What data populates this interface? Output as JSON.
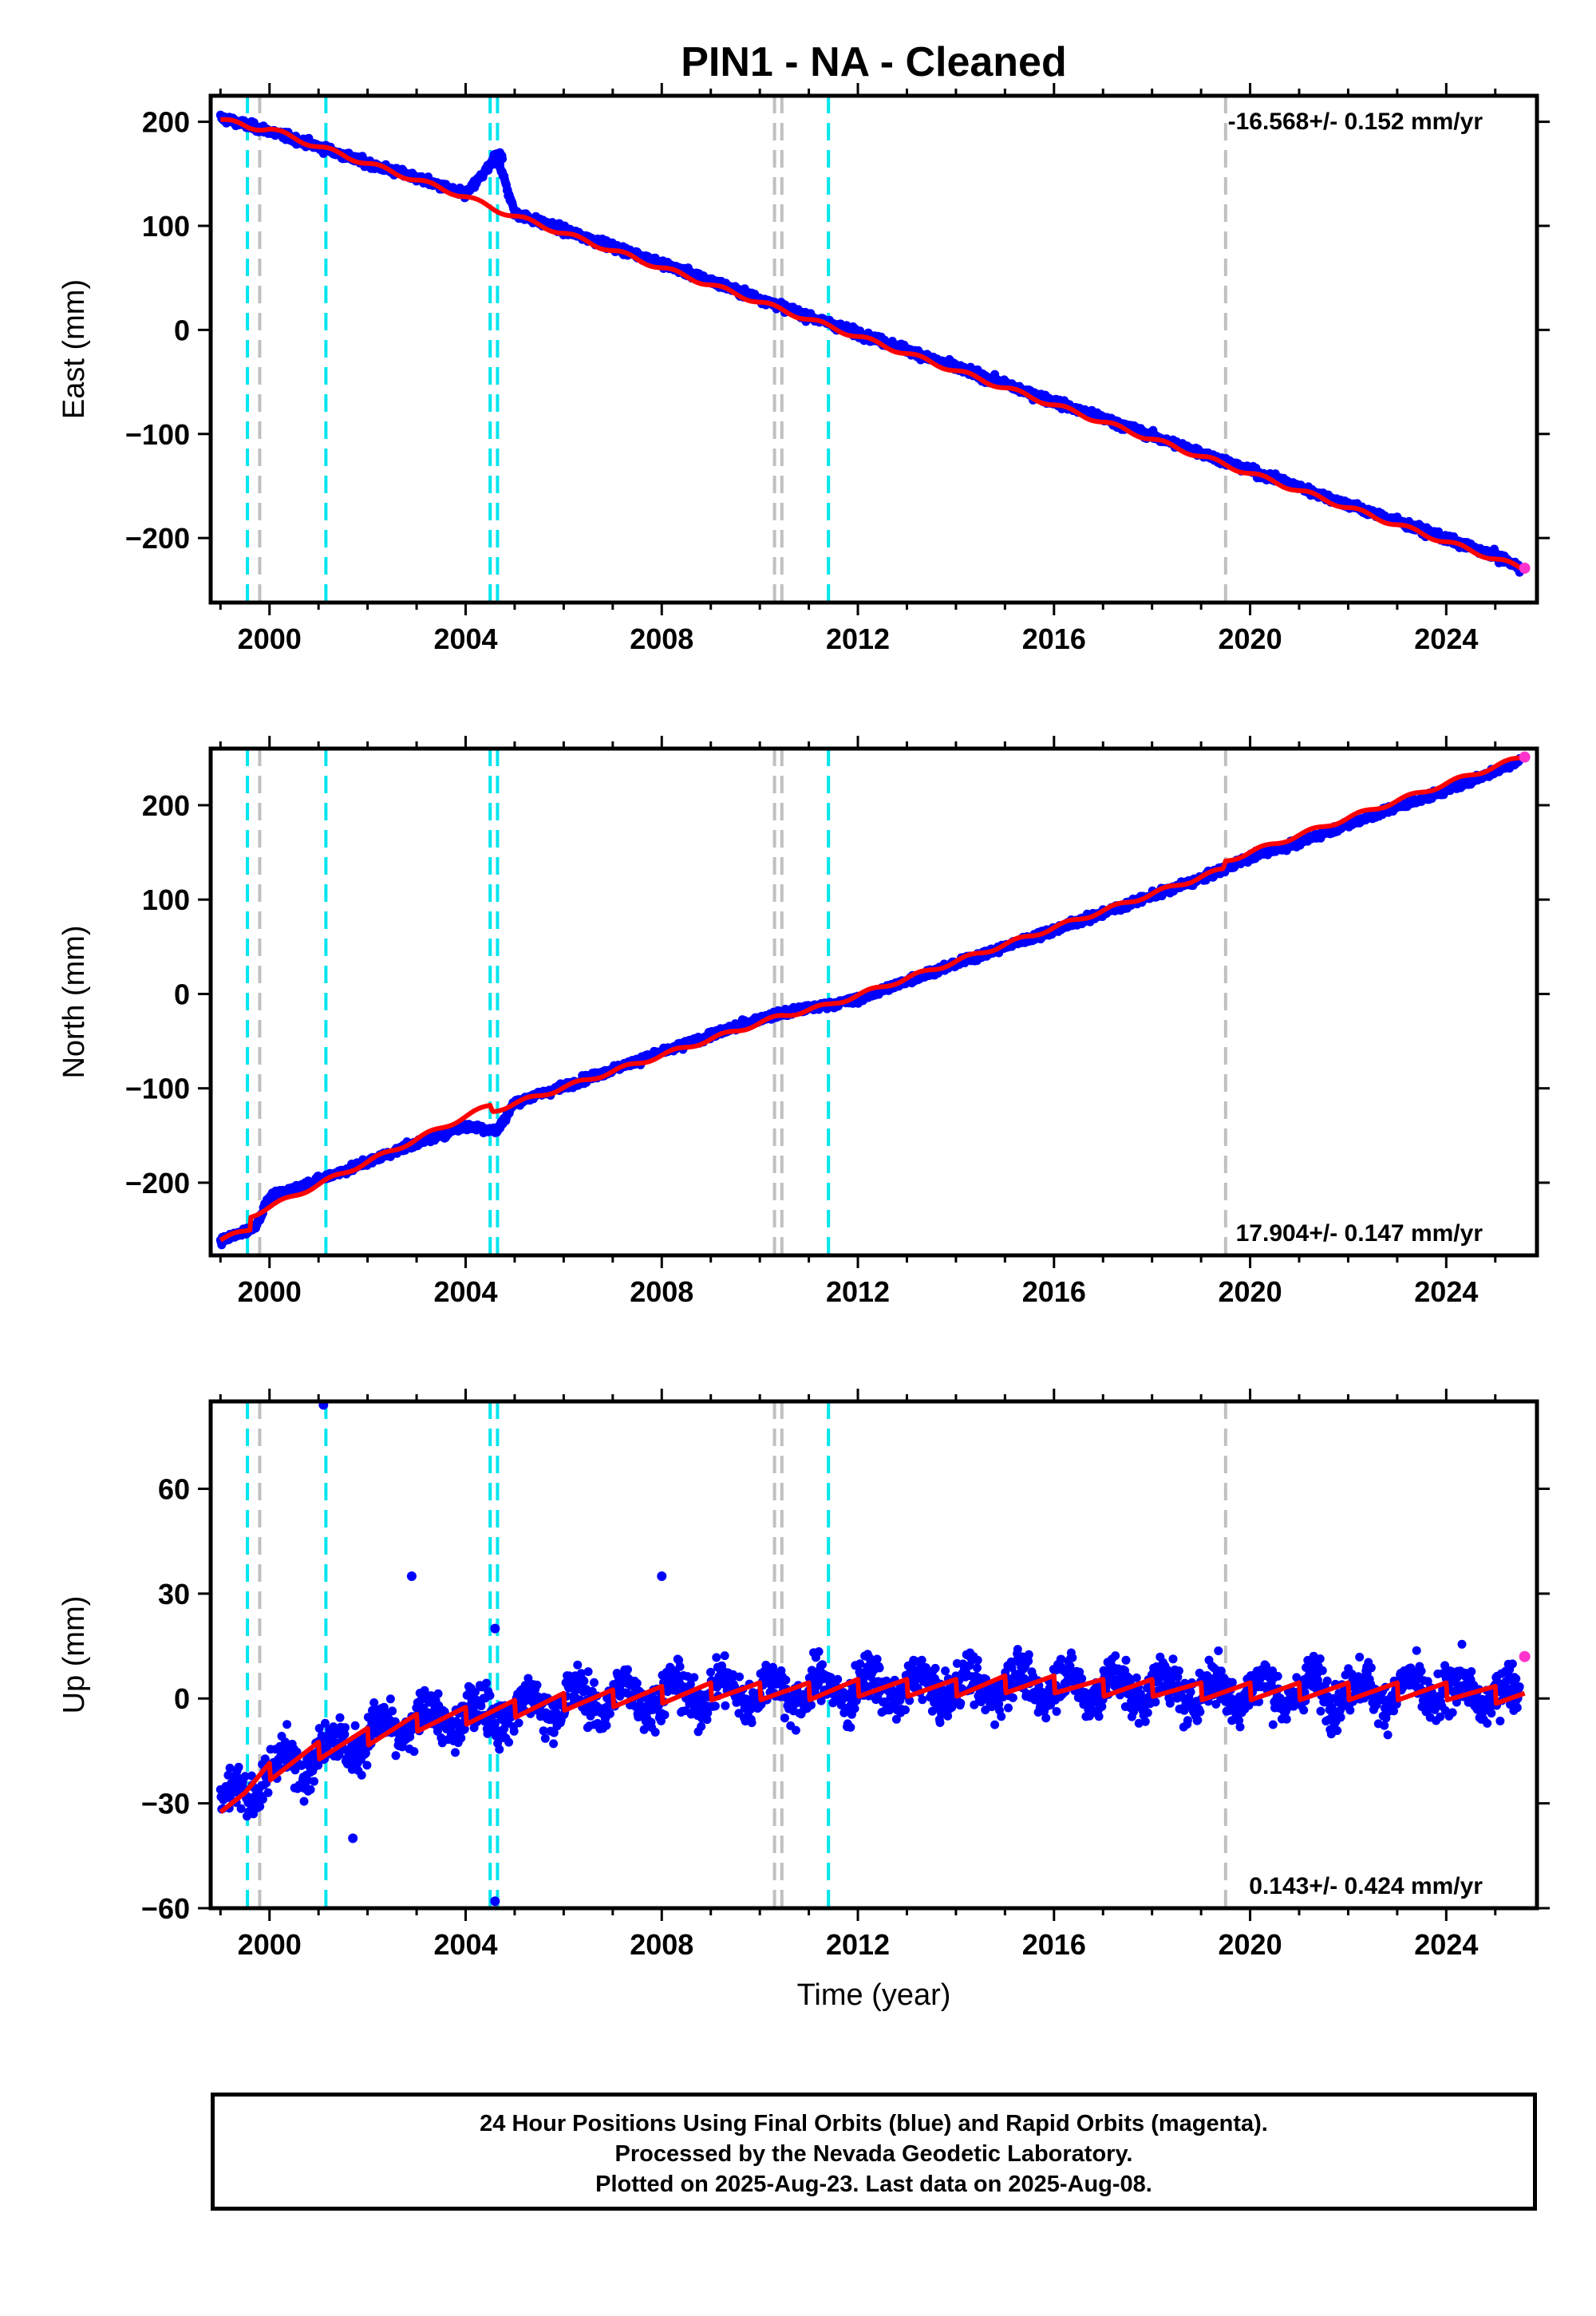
{
  "title": "PIN1  - NA - Cleaned",
  "x_axis_label": "Time (year)",
  "footer": {
    "line1": "24 Hour Positions Using Final Orbits (blue) and Rapid Orbits (magenta).",
    "line2": "Processed by the Nevada Geodetic Laboratory.",
    "line3": "Plotted on 2025-Aug-23. Last data on 2025-Aug-08."
  },
  "colors": {
    "final_orbits": "#0000ff",
    "rapid_orbits": "#ff33cc",
    "model": "#ff0000",
    "equipment_change": "#00e5ee",
    "other_change": "#c0c0c0"
  },
  "chart_data": [
    {
      "type": "scatter",
      "panel": "east",
      "ylabel": "East (mm)",
      "xlim": [
        1998.8,
        2025.85
      ],
      "ylim": [
        -262,
        225
      ],
      "xticks": [
        2000,
        2004,
        2008,
        2012,
        2016,
        2020,
        2024
      ],
      "yticks": [
        -200,
        -100,
        0,
        100,
        200
      ],
      "rate_label": "-16.568+/- 0.152 mm/yr",
      "rate_position": "top-right",
      "series": [
        {
          "name": "Final Orbits",
          "x": [
            1999.0,
            2000.0,
            2001.0,
            2002.0,
            2003.0,
            2004.0,
            2004.65,
            2005.0,
            2006.0,
            2007.0,
            2008.0,
            2009.0,
            2010.0,
            2011.0,
            2012.0,
            2013.0,
            2014.0,
            2015.0,
            2016.0,
            2017.0,
            2018.0,
            2019.0,
            2020.0,
            2021.0,
            2022.0,
            2023.0,
            2024.0,
            2025.0,
            2025.5
          ],
          "y": [
            204,
            191,
            176,
            160,
            146,
            130,
            166,
            112,
            96,
            80,
            64,
            47,
            30,
            13,
            -3,
            -19,
            -36,
            -52,
            -69,
            -85,
            -102,
            -118,
            -135,
            -151,
            -168,
            -184,
            -201,
            -217,
            -228
          ]
        },
        {
          "name": "Rapid Orbits",
          "x": [
            2025.6
          ],
          "y": [
            -229
          ]
        }
      ],
      "model": {
        "x": [
          1999.0,
          1999.6,
          2000.0,
          2001.0,
          2004.0,
          2004.6,
          2010.4,
          2025.6
        ],
        "y": [
          202,
          195,
          193,
          176,
          128,
          116,
          20,
          -230
        ]
      },
      "offsets_equipment": [
        1999.55,
        2001.15,
        2004.5,
        2004.65,
        2011.4
      ],
      "offsets_other": [
        1999.8,
        2010.3,
        2010.45,
        2019.5
      ]
    },
    {
      "type": "scatter",
      "panel": "north",
      "ylabel": "North (mm)",
      "xlim": [
        1998.8,
        2025.85
      ],
      "ylim": [
        -277,
        260
      ],
      "xticks": [
        2000,
        2004,
        2008,
        2012,
        2016,
        2020,
        2024
      ],
      "yticks": [
        -200,
        -100,
        0,
        100,
        200
      ],
      "rate_label": "17.904+/- 0.147 mm/yr",
      "rate_position": "bottom-right",
      "series": [
        {
          "name": "Final Orbits",
          "x": [
            1999.0,
            1999.7,
            2000.0,
            2001.0,
            2002.0,
            2003.0,
            2004.0,
            2004.65,
            2005.0,
            2006.0,
            2007.0,
            2008.0,
            2009.0,
            2010.0,
            2011.0,
            2012.0,
            2013.0,
            2014.0,
            2015.0,
            2016.0,
            2017.0,
            2018.0,
            2019.0,
            2020.0,
            2021.0,
            2022.0,
            2023.0,
            2024.0,
            2025.0,
            2025.5
          ],
          "y": [
            -262,
            -247,
            -216,
            -197,
            -178,
            -158,
            -140,
            -145,
            -115,
            -98,
            -80,
            -62,
            -44,
            -26,
            -15,
            -6,
            14,
            32,
            50,
            68,
            86,
            104,
            122,
            145,
            161,
            180,
            198,
            216,
            236,
            248
          ]
        },
        {
          "name": "Rapid Orbits",
          "x": [
            2025.6
          ],
          "y": [
            251
          ]
        }
      ],
      "model": {
        "x": [
          1999.0,
          1999.6,
          1999.62,
          2004.5,
          2004.55,
          2010.4,
          2011.4,
          2019.45,
          2019.5,
          2025.6
        ],
        "y": [
          -261,
          -249,
          -235,
          -118,
          -124,
          -24,
          -12,
          132,
          141,
          252
        ]
      },
      "offsets_equipment": [
        1999.55,
        2001.15,
        2004.5,
        2004.65,
        2011.4
      ],
      "offsets_other": [
        1999.8,
        2010.3,
        2010.45,
        2019.5
      ]
    },
    {
      "type": "scatter",
      "panel": "up",
      "ylabel": "Up (mm)",
      "xlim": [
        1998.8,
        2025.85
      ],
      "ylim": [
        -60,
        85
      ],
      "xticks": [
        2000,
        2004,
        2008,
        2012,
        2016,
        2020,
        2024
      ],
      "yticks": [
        -60,
        -30,
        0,
        30,
        60
      ],
      "rate_label": "0.143+/- 0.424 mm/yr",
      "rate_position": "bottom-right",
      "series": [
        {
          "name": "Final Orbits",
          "x": [
            1999.0,
            1999.5,
            2000.0,
            2001.0,
            2002.0,
            2003.0,
            2004.0,
            2005.0,
            2006.0,
            2007.0,
            2008.0,
            2009.0,
            2010.0,
            2011.0,
            2012.0,
            2013.0,
            2014.0,
            2015.0,
            2016.0,
            2017.0,
            2018.0,
            2019.0,
            2020.0,
            2021.0,
            2022.0,
            2023.0,
            2024.0,
            2025.0,
            2025.5
          ],
          "y": [
            -30,
            -27,
            -21,
            -15,
            -11,
            -7,
            -5,
            -3,
            -1,
            0,
            1,
            2,
            2,
            2,
            3,
            3,
            3,
            4,
            4,
            3,
            3,
            2,
            2,
            2,
            2,
            2,
            2,
            1,
            1
          ]
        },
        {
          "name": "Rapid Orbits",
          "x": [
            2025.6
          ],
          "y": [
            12
          ]
        }
      ],
      "outliers": {
        "x": [
          2001.1,
          2002.9,
          2004.6,
          2004.6,
          2008.0,
          2001.7
        ],
        "y": [
          84,
          35,
          -58,
          20,
          35,
          -40
        ]
      },
      "offsets_equipment": [
        1999.55,
        2001.15,
        2004.5,
        2004.65,
        2011.4
      ],
      "offsets_other": [
        1999.8,
        2010.3,
        2010.45,
        2019.5
      ]
    }
  ]
}
